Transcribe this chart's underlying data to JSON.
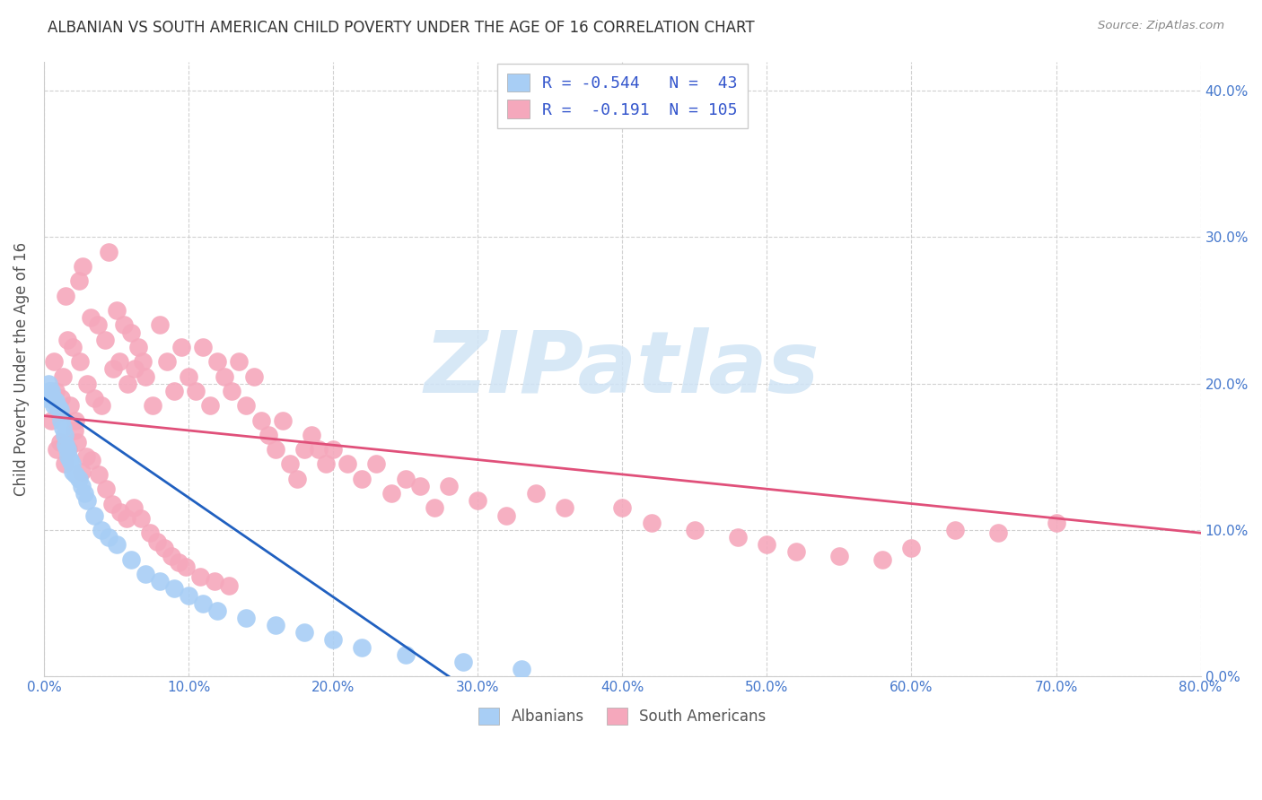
{
  "title": "ALBANIAN VS SOUTH AMERICAN CHILD POVERTY UNDER THE AGE OF 16 CORRELATION CHART",
  "source": "Source: ZipAtlas.com",
  "ylabel": "Child Poverty Under the Age of 16",
  "xlim": [
    0.0,
    0.8
  ],
  "ylim": [
    0.0,
    0.42
  ],
  "albanian_color": "#a8cef5",
  "south_american_color": "#f5a8bc",
  "albanian_line_color": "#2060c0",
  "south_american_line_color": "#e0507a",
  "watermark_color": "#d0e4f5",
  "background_color": "#ffffff",
  "grid_color": "#cccccc",
  "legend_R1": "R = -0.544",
  "legend_N1": "N =  43",
  "legend_R2": "R =  -0.191",
  "legend_N2": "N = 105",
  "legend_labels": [
    "Albanians",
    "South Americans"
  ],
  "legend_text_color": "#3355cc",
  "alb_line_x0": 0.0,
  "alb_line_y0": 0.19,
  "alb_line_x1": 0.28,
  "alb_line_y1": 0.0,
  "sa_line_x0": 0.0,
  "sa_line_y0": 0.178,
  "sa_line_x1": 0.8,
  "sa_line_y1": 0.098,
  "albanians_x": [
    0.002,
    0.003,
    0.004,
    0.005,
    0.006,
    0.007,
    0.008,
    0.009,
    0.01,
    0.011,
    0.012,
    0.013,
    0.014,
    0.015,
    0.016,
    0.017,
    0.018,
    0.019,
    0.02,
    0.022,
    0.024,
    0.026,
    0.028,
    0.03,
    0.035,
    0.04,
    0.045,
    0.05,
    0.06,
    0.07,
    0.08,
    0.09,
    0.1,
    0.11,
    0.12,
    0.14,
    0.16,
    0.18,
    0.2,
    0.22,
    0.25,
    0.29,
    0.33
  ],
  "albanians_y": [
    0.19,
    0.2,
    0.195,
    0.195,
    0.19,
    0.185,
    0.188,
    0.186,
    0.184,
    0.182,
    0.175,
    0.17,
    0.165,
    0.158,
    0.155,
    0.15,
    0.148,
    0.145,
    0.14,
    0.138,
    0.135,
    0.13,
    0.125,
    0.12,
    0.11,
    0.1,
    0.095,
    0.09,
    0.08,
    0.07,
    0.065,
    0.06,
    0.055,
    0.05,
    0.045,
    0.04,
    0.035,
    0.03,
    0.025,
    0.02,
    0.015,
    0.01,
    0.005
  ],
  "south_americans_x": [
    0.005,
    0.007,
    0.008,
    0.01,
    0.012,
    0.013,
    0.015,
    0.016,
    0.018,
    0.02,
    0.022,
    0.024,
    0.025,
    0.027,
    0.03,
    0.032,
    0.035,
    0.037,
    0.04,
    0.042,
    0.045,
    0.048,
    0.05,
    0.052,
    0.055,
    0.058,
    0.06,
    0.063,
    0.065,
    0.068,
    0.07,
    0.075,
    0.08,
    0.085,
    0.09,
    0.095,
    0.1,
    0.105,
    0.11,
    0.115,
    0.12,
    0.125,
    0.13,
    0.135,
    0.14,
    0.145,
    0.15,
    0.155,
    0.16,
    0.165,
    0.17,
    0.175,
    0.18,
    0.185,
    0.19,
    0.195,
    0.2,
    0.21,
    0.22,
    0.23,
    0.24,
    0.25,
    0.26,
    0.27,
    0.28,
    0.3,
    0.32,
    0.34,
    0.36,
    0.4,
    0.42,
    0.45,
    0.48,
    0.5,
    0.52,
    0.55,
    0.58,
    0.6,
    0.63,
    0.66,
    0.7,
    0.009,
    0.011,
    0.014,
    0.017,
    0.021,
    0.023,
    0.026,
    0.029,
    0.033,
    0.038,
    0.043,
    0.047,
    0.053,
    0.057,
    0.062,
    0.067,
    0.073,
    0.078,
    0.083,
    0.088,
    0.093,
    0.098,
    0.108,
    0.118,
    0.128
  ],
  "south_americans_y": [
    0.175,
    0.215,
    0.195,
    0.18,
    0.19,
    0.205,
    0.26,
    0.23,
    0.185,
    0.225,
    0.175,
    0.27,
    0.215,
    0.28,
    0.2,
    0.245,
    0.19,
    0.24,
    0.185,
    0.23,
    0.29,
    0.21,
    0.25,
    0.215,
    0.24,
    0.2,
    0.235,
    0.21,
    0.225,
    0.215,
    0.205,
    0.185,
    0.24,
    0.215,
    0.195,
    0.225,
    0.205,
    0.195,
    0.225,
    0.185,
    0.215,
    0.205,
    0.195,
    0.215,
    0.185,
    0.205,
    0.175,
    0.165,
    0.155,
    0.175,
    0.145,
    0.135,
    0.155,
    0.165,
    0.155,
    0.145,
    0.155,
    0.145,
    0.135,
    0.145,
    0.125,
    0.135,
    0.13,
    0.115,
    0.13,
    0.12,
    0.11,
    0.125,
    0.115,
    0.115,
    0.105,
    0.1,
    0.095,
    0.09,
    0.085,
    0.082,
    0.08,
    0.088,
    0.1,
    0.098,
    0.105,
    0.155,
    0.16,
    0.145,
    0.155,
    0.168,
    0.16,
    0.14,
    0.15,
    0.148,
    0.138,
    0.128,
    0.118,
    0.112,
    0.108,
    0.115,
    0.108,
    0.098,
    0.092,
    0.088,
    0.082,
    0.078,
    0.075,
    0.068,
    0.065,
    0.062
  ]
}
